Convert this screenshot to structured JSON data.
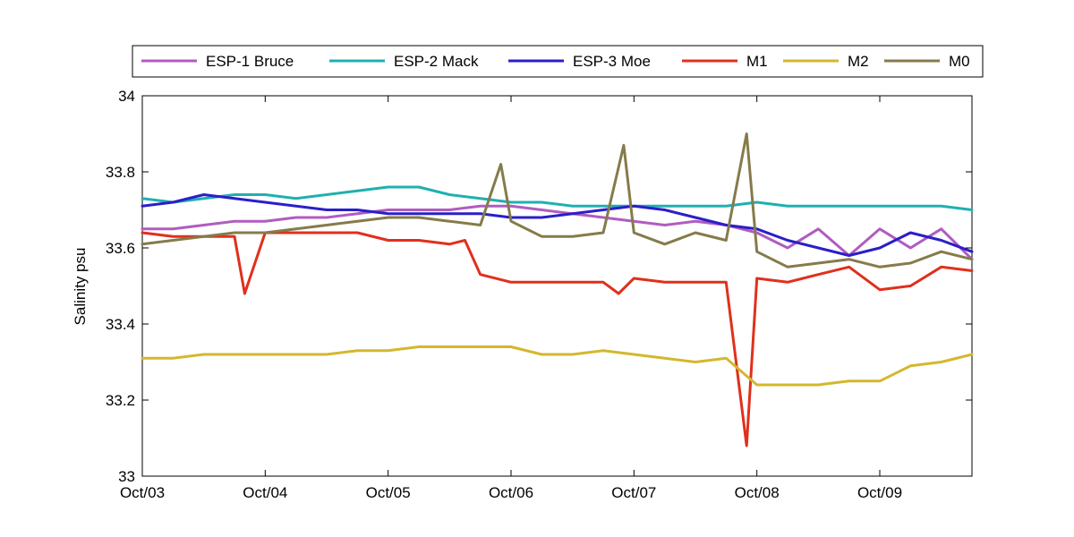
{
  "chart_data": {
    "type": "line",
    "title": "",
    "xlabel": "",
    "ylabel": "Salinity psu",
    "xlim": [
      "2010-10-03T00:00",
      "2010-10-09T18:00"
    ],
    "ylim": [
      33,
      34
    ],
    "x_ticks": [
      "Oct/03",
      "Oct/04",
      "Oct/05",
      "Oct/06",
      "Oct/07",
      "Oct/08",
      "Oct/09"
    ],
    "y_ticks": [
      "33",
      "33.2",
      "33.4",
      "33.6",
      "33.8",
      "34"
    ],
    "grid": false,
    "legend": "top",
    "series": [
      {
        "name": "ESP-1 Bruce",
        "color": "#b05cc0",
        "x": [
          "2010-10-03T00:00",
          "2010-10-03T06:00",
          "2010-10-03T12:00",
          "2010-10-03T18:00",
          "2010-10-04T00:00",
          "2010-10-04T06:00",
          "2010-10-04T12:00",
          "2010-10-04T18:00",
          "2010-10-05T00:00",
          "2010-10-05T06:00",
          "2010-10-05T12:00",
          "2010-10-05T18:00",
          "2010-10-06T00:00",
          "2010-10-06T06:00",
          "2010-10-06T12:00",
          "2010-10-06T18:00",
          "2010-10-07T00:00",
          "2010-10-07T06:00",
          "2010-10-07T12:00",
          "2010-10-07T18:00",
          "2010-10-08T00:00",
          "2010-10-08T06:00",
          "2010-10-08T12:00",
          "2010-10-08T18:00",
          "2010-10-09T00:00",
          "2010-10-09T06:00",
          "2010-10-09T12:00",
          "2010-10-09T18:00"
        ],
        "values": [
          33.65,
          33.65,
          33.66,
          33.67,
          33.67,
          33.68,
          33.68,
          33.69,
          33.7,
          33.7,
          33.7,
          33.71,
          33.71,
          33.7,
          33.69,
          33.68,
          33.67,
          33.66,
          33.67,
          33.66,
          33.64,
          33.6,
          33.65,
          33.58,
          33.65,
          33.6,
          33.65,
          33.57
        ]
      },
      {
        "name": "ESP-2 Mack",
        "color": "#1fb0b0",
        "x": [
          "2010-10-03T00:00",
          "2010-10-03T06:00",
          "2010-10-03T12:00",
          "2010-10-03T18:00",
          "2010-10-04T00:00",
          "2010-10-04T06:00",
          "2010-10-04T12:00",
          "2010-10-04T18:00",
          "2010-10-05T00:00",
          "2010-10-05T06:00",
          "2010-10-05T12:00",
          "2010-10-05T18:00",
          "2010-10-06T00:00",
          "2010-10-06T06:00",
          "2010-10-06T12:00",
          "2010-10-06T18:00",
          "2010-10-07T00:00",
          "2010-10-07T06:00",
          "2010-10-07T12:00",
          "2010-10-07T18:00",
          "2010-10-08T00:00",
          "2010-10-08T06:00",
          "2010-10-08T12:00",
          "2010-10-08T18:00",
          "2010-10-09T00:00",
          "2010-10-09T06:00",
          "2010-10-09T12:00",
          "2010-10-09T18:00"
        ],
        "values": [
          33.73,
          33.72,
          33.73,
          33.74,
          33.74,
          33.73,
          33.74,
          33.75,
          33.76,
          33.76,
          33.74,
          33.73,
          33.72,
          33.72,
          33.71,
          33.71,
          33.71,
          33.71,
          33.71,
          33.71,
          33.72,
          33.71,
          33.71,
          33.71,
          33.71,
          33.71,
          33.71,
          33.7
        ]
      },
      {
        "name": "ESP-3 Moe",
        "color": "#2a1fc8",
        "x": [
          "2010-10-03T00:00",
          "2010-10-03T06:00",
          "2010-10-03T12:00",
          "2010-10-03T18:00",
          "2010-10-04T00:00",
          "2010-10-04T06:00",
          "2010-10-04T12:00",
          "2010-10-04T18:00",
          "2010-10-05T00:00",
          "2010-10-05T06:00",
          "2010-10-05T12:00",
          "2010-10-05T18:00",
          "2010-10-06T00:00",
          "2010-10-06T06:00",
          "2010-10-06T12:00",
          "2010-10-06T18:00",
          "2010-10-07T00:00",
          "2010-10-07T06:00",
          "2010-10-07T12:00",
          "2010-10-07T18:00",
          "2010-10-08T00:00",
          "2010-10-08T06:00",
          "2010-10-08T12:00",
          "2010-10-08T18:00",
          "2010-10-09T00:00",
          "2010-10-09T06:00",
          "2010-10-09T12:00",
          "2010-10-09T18:00"
        ],
        "values": [
          33.71,
          33.72,
          33.74,
          33.73,
          33.72,
          33.71,
          33.7,
          33.7,
          33.69,
          33.69,
          33.69,
          33.69,
          33.68,
          33.68,
          33.69,
          33.7,
          33.71,
          33.7,
          33.68,
          33.66,
          33.65,
          33.62,
          33.6,
          33.58,
          33.6,
          33.64,
          33.62,
          33.59
        ]
      },
      {
        "name": "M1",
        "color": "#e0301c",
        "x": [
          "2010-10-03T00:00",
          "2010-10-03T06:00",
          "2010-10-03T12:00",
          "2010-10-03T18:00",
          "2010-10-03T20:00",
          "2010-10-04T00:00",
          "2010-10-04T06:00",
          "2010-10-04T12:00",
          "2010-10-04T18:00",
          "2010-10-05T00:00",
          "2010-10-05T06:00",
          "2010-10-05T12:00",
          "2010-10-05T15:00",
          "2010-10-05T18:00",
          "2010-10-06T00:00",
          "2010-10-06T06:00",
          "2010-10-06T12:00",
          "2010-10-06T18:00",
          "2010-10-06T21:00",
          "2010-10-07T00:00",
          "2010-10-07T06:00",
          "2010-10-07T12:00",
          "2010-10-07T18:00",
          "2010-10-07T22:00",
          "2010-10-08T00:00",
          "2010-10-08T06:00",
          "2010-10-08T12:00",
          "2010-10-08T18:00",
          "2010-10-09T00:00",
          "2010-10-09T06:00",
          "2010-10-09T12:00",
          "2010-10-09T18:00"
        ],
        "values": [
          33.64,
          33.63,
          33.63,
          33.63,
          33.48,
          33.64,
          33.64,
          33.64,
          33.64,
          33.62,
          33.62,
          33.61,
          33.62,
          33.53,
          33.51,
          33.51,
          33.51,
          33.51,
          33.48,
          33.52,
          33.51,
          33.51,
          33.51,
          33.08,
          33.52,
          33.51,
          33.53,
          33.55,
          33.49,
          33.5,
          33.55,
          33.54
        ]
      },
      {
        "name": "M2",
        "color": "#d4b72e",
        "x": [
          "2010-10-03T00:00",
          "2010-10-03T06:00",
          "2010-10-03T12:00",
          "2010-10-03T18:00",
          "2010-10-04T00:00",
          "2010-10-04T06:00",
          "2010-10-04T12:00",
          "2010-10-04T18:00",
          "2010-10-05T00:00",
          "2010-10-05T06:00",
          "2010-10-05T12:00",
          "2010-10-05T18:00",
          "2010-10-06T00:00",
          "2010-10-06T06:00",
          "2010-10-06T12:00",
          "2010-10-06T18:00",
          "2010-10-07T00:00",
          "2010-10-07T06:00",
          "2010-10-07T12:00",
          "2010-10-07T18:00",
          "2010-10-08T00:00",
          "2010-10-08T06:00",
          "2010-10-08T12:00",
          "2010-10-08T18:00",
          "2010-10-09T00:00",
          "2010-10-09T06:00",
          "2010-10-09T12:00",
          "2010-10-09T18:00"
        ],
        "values": [
          33.31,
          33.31,
          33.32,
          33.32,
          33.32,
          33.32,
          33.32,
          33.33,
          33.33,
          33.34,
          33.34,
          33.34,
          33.34,
          33.32,
          33.32,
          33.33,
          33.32,
          33.31,
          33.3,
          33.31,
          33.24,
          33.24,
          33.24,
          33.25,
          33.25,
          33.29,
          33.3,
          33.32
        ]
      },
      {
        "name": "M0",
        "color": "#857b4b",
        "x": [
          "2010-10-03T00:00",
          "2010-10-03T06:00",
          "2010-10-03T12:00",
          "2010-10-03T18:00",
          "2010-10-04T00:00",
          "2010-10-04T06:00",
          "2010-10-04T12:00",
          "2010-10-04T18:00",
          "2010-10-05T00:00",
          "2010-10-05T06:00",
          "2010-10-05T12:00",
          "2010-10-05T18:00",
          "2010-10-05T22:00",
          "2010-10-06T00:00",
          "2010-10-06T06:00",
          "2010-10-06T12:00",
          "2010-10-06T18:00",
          "2010-10-06T22:00",
          "2010-10-07T00:00",
          "2010-10-07T06:00",
          "2010-10-07T12:00",
          "2010-10-07T18:00",
          "2010-10-07T22:00",
          "2010-10-08T00:00",
          "2010-10-08T06:00",
          "2010-10-08T12:00",
          "2010-10-08T18:00",
          "2010-10-09T00:00",
          "2010-10-09T06:00",
          "2010-10-09T12:00",
          "2010-10-09T18:00"
        ],
        "values": [
          33.61,
          33.62,
          33.63,
          33.64,
          33.64,
          33.65,
          33.66,
          33.67,
          33.68,
          33.68,
          33.67,
          33.66,
          33.82,
          33.67,
          33.63,
          33.63,
          33.64,
          33.87,
          33.64,
          33.61,
          33.64,
          33.62,
          33.9,
          33.59,
          33.55,
          33.56,
          33.57,
          33.55,
          33.56,
          33.59,
          33.57
        ]
      }
    ]
  }
}
